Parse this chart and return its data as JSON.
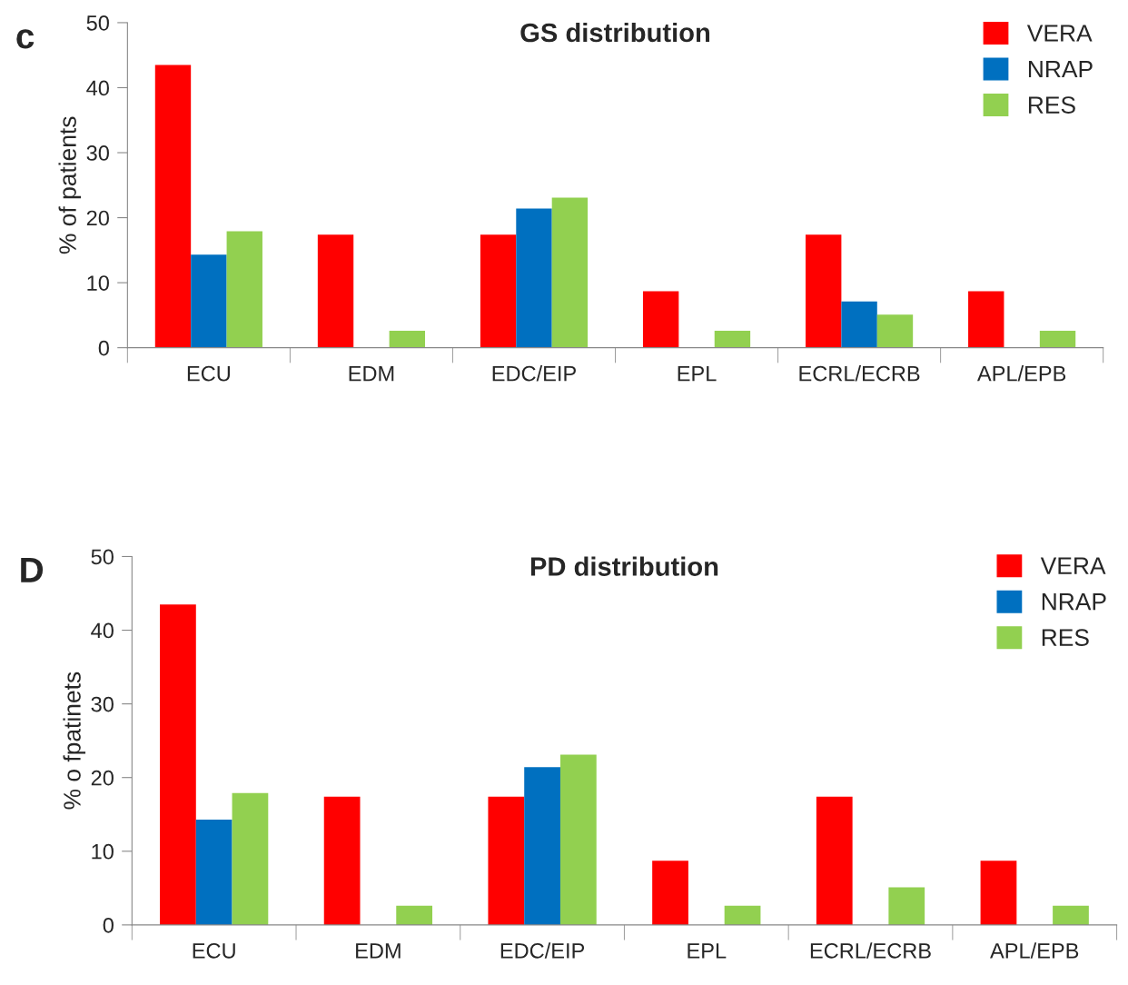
{
  "chart_data": [
    {
      "type": "bar",
      "title": "GS distribution",
      "ylabel": "% of patients",
      "annotations": [
        "c"
      ],
      "categories": [
        "ECU",
        "EDM",
        "EDC/EIP",
        "EPL",
        "ECRL/ECRB",
        "APL/EPB"
      ],
      "series": [
        {
          "name": "VERA",
          "color": "#ff0000",
          "values": [
            43.5,
            17.4,
            17.4,
            8.7,
            17.4,
            8.7
          ]
        },
        {
          "name": "NRAP",
          "color": "#0070c0",
          "values": [
            14.3,
            0,
            21.4,
            0,
            7.1,
            0
          ]
        },
        {
          "name": "RES",
          "color": "#92d050",
          "values": [
            17.9,
            2.6,
            23.1,
            2.6,
            5.1,
            2.6
          ]
        }
      ],
      "ylim": [
        0,
        50
      ],
      "yticks": [
        0,
        10,
        20,
        30,
        40,
        50
      ],
      "grid": false,
      "legend": "top right"
    },
    {
      "type": "bar",
      "title": "PD distribution",
      "ylabel": "% o fpatinets",
      "annotations": [
        "D"
      ],
      "categories": [
        "ECU",
        "EDM",
        "EDC/EIP",
        "EPL",
        "ECRL/ECRB",
        "APL/EPB"
      ],
      "series": [
        {
          "name": "VERA",
          "color": "#ff0000",
          "values": [
            43.5,
            17.4,
            17.4,
            8.7,
            17.4,
            8.7
          ]
        },
        {
          "name": "NRAP",
          "color": "#0070c0",
          "values": [
            14.3,
            0,
            21.4,
            0,
            0,
            0
          ]
        },
        {
          "name": "RES",
          "color": "#92d050",
          "values": [
            17.9,
            2.6,
            23.1,
            2.6,
            5.1,
            2.6
          ]
        }
      ],
      "ylim": [
        0,
        50
      ],
      "yticks": [
        0,
        10,
        20,
        30,
        40,
        50
      ],
      "grid": false,
      "legend": "top right"
    }
  ]
}
